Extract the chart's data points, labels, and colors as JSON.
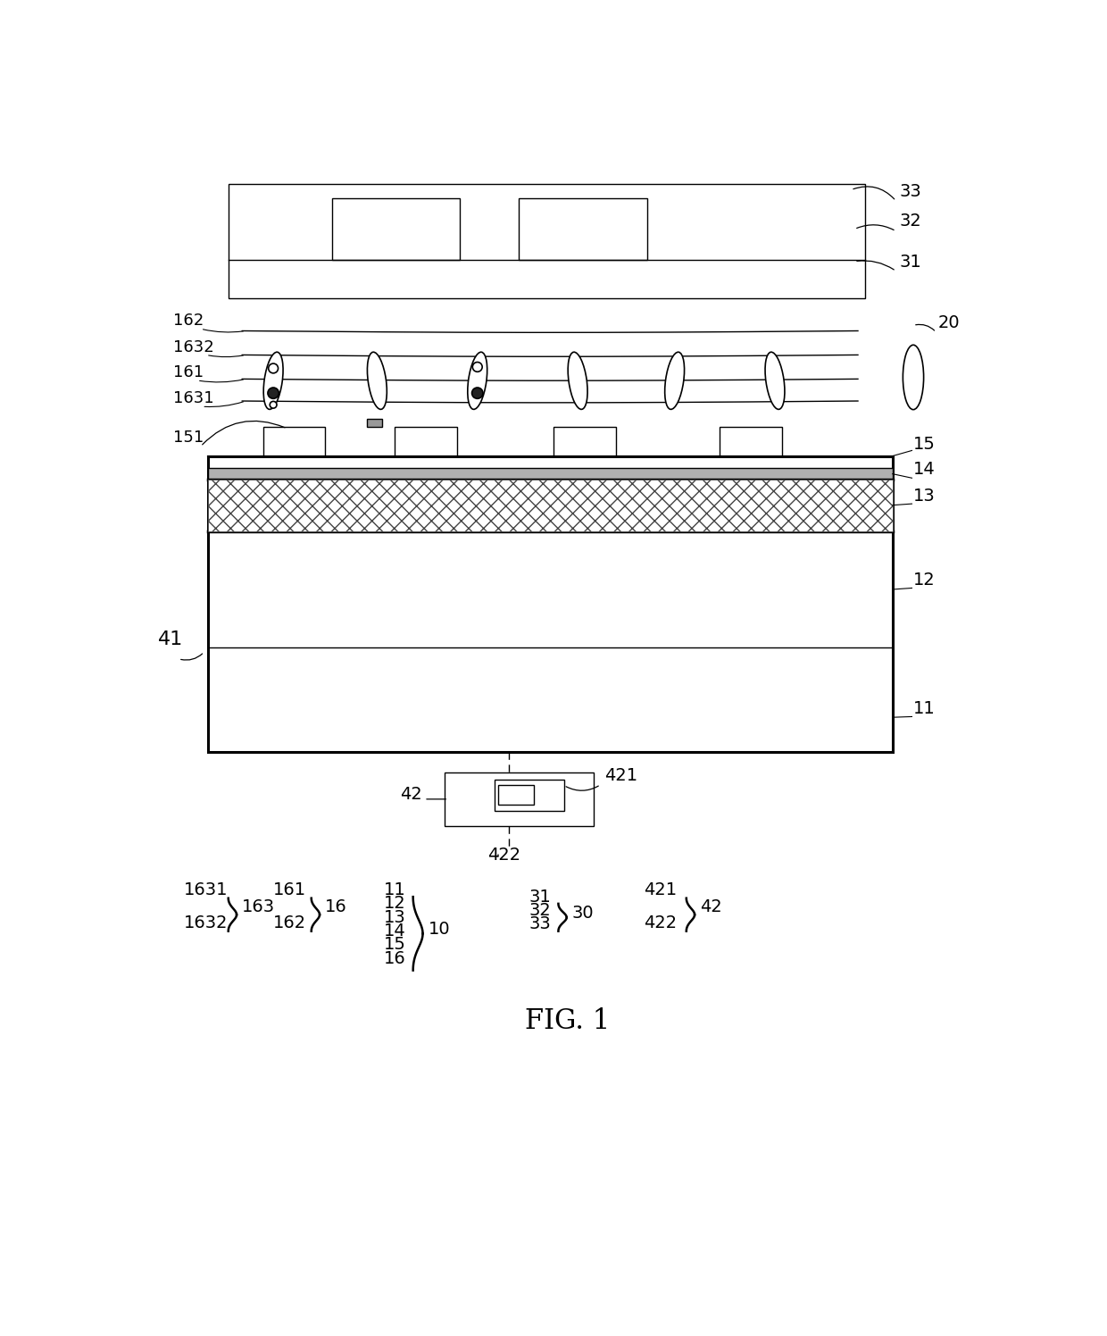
{
  "title": "FIG. 1",
  "bg_color": "#ffffff",
  "fig_width": 12.4,
  "fig_height": 14.96,
  "dpi": 100
}
